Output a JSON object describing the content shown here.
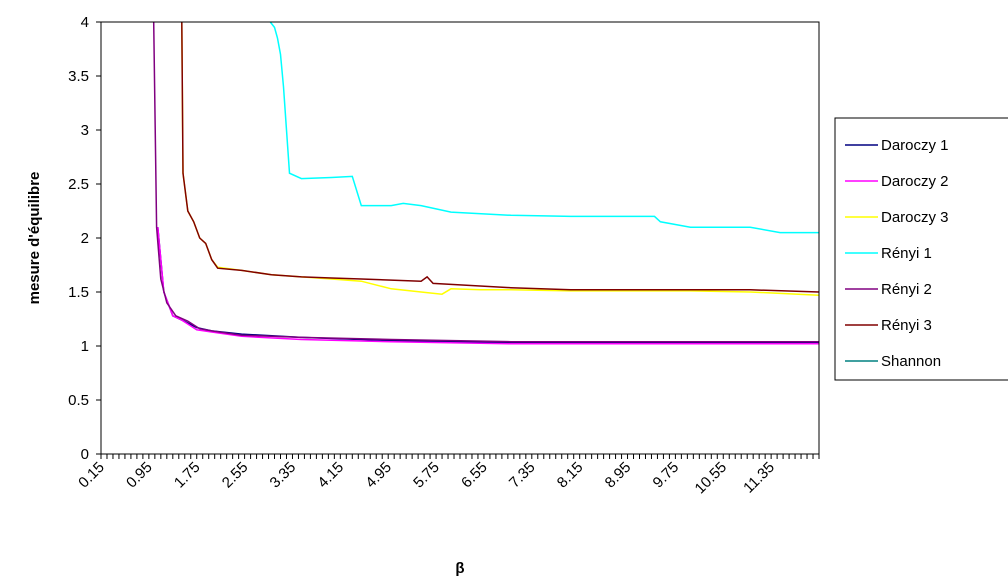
{
  "chart_data": {
    "type": "line",
    "title": "",
    "xlabel": "β",
    "ylabel": "mesure d'équilibre",
    "xlim": [
      0.15,
      12.15
    ],
    "ylim": [
      0,
      4
    ],
    "yticks": [
      "0",
      "0.5",
      "1",
      "1.5",
      "2",
      "2.5",
      "3",
      "3.5",
      "4"
    ],
    "xtick_labels": [
      "0.15",
      "0.95",
      "1.75",
      "2.55",
      "3.35",
      "4.15",
      "4.95",
      "5.75",
      "6.55",
      "7.35",
      "8.15",
      "8.95",
      "9.75",
      "10.55",
      "11.35"
    ],
    "grid": false,
    "legend_position": "right",
    "series": [
      {
        "name": "Daroczy 1",
        "color": "#000080",
        "x": [
          1.1,
          1.2,
          1.35,
          1.5,
          1.75,
          2.0,
          2.5,
          3.5,
          5.0,
          7.0,
          10.0,
          12.15
        ],
        "y": [
          2.1,
          1.5,
          1.28,
          1.24,
          1.17,
          1.14,
          1.11,
          1.08,
          1.05,
          1.03,
          1.03,
          1.03
        ]
      },
      {
        "name": "Daroczy 2",
        "color": "#ff00ff",
        "x": [
          1.1,
          1.2,
          1.35,
          1.5,
          1.75,
          2.0,
          2.5,
          3.5,
          5.0,
          7.0,
          10.0,
          12.15
        ],
        "y": [
          2.1,
          1.5,
          1.28,
          1.24,
          1.15,
          1.13,
          1.09,
          1.06,
          1.04,
          1.02,
          1.02,
          1.02
        ]
      },
      {
        "name": "Daroczy 3",
        "color": "#ffff00",
        "x": [
          1.5,
          1.52,
          1.6,
          1.7,
          1.8,
          1.9,
          2.0,
          2.1,
          2.5,
          3.0,
          3.5,
          4.0,
          4.5,
          5.0,
          5.5,
          5.85,
          6.0,
          6.5,
          7.0,
          8.0,
          9.0,
          10.0,
          11.0,
          12.15
        ],
        "y": [
          4.0,
          2.6,
          2.25,
          2.15,
          2.0,
          1.95,
          1.8,
          1.73,
          1.7,
          1.66,
          1.64,
          1.62,
          1.6,
          1.53,
          1.5,
          1.48,
          1.53,
          1.52,
          1.52,
          1.51,
          1.51,
          1.51,
          1.5,
          1.47
        ]
      },
      {
        "name": "Rényi 1",
        "color": "#00ffff",
        "x": [
          2.98,
          3.05,
          3.1,
          3.15,
          3.2,
          3.25,
          3.3,
          3.5,
          4.0,
          4.35,
          4.5,
          5.0,
          5.2,
          5.5,
          6.0,
          7.0,
          8.0,
          9.4,
          9.5,
          10.0,
          10.5,
          11.0,
          11.5,
          12.15
        ],
        "y": [
          4.0,
          3.95,
          3.85,
          3.7,
          3.4,
          3.0,
          2.6,
          2.55,
          2.56,
          2.57,
          2.3,
          2.3,
          2.32,
          2.3,
          2.24,
          2.21,
          2.2,
          2.2,
          2.15,
          2.1,
          2.1,
          2.1,
          2.05,
          2.05
        ]
      },
      {
        "name": "Rényi 2",
        "color": "#800080",
        "x": [
          1.03,
          1.08,
          1.15,
          1.25,
          1.4,
          1.6,
          1.8,
          2.0,
          2.5,
          3.5,
          5.0,
          7.0,
          10.0,
          12.15
        ],
        "y": [
          4.0,
          2.1,
          1.62,
          1.4,
          1.28,
          1.23,
          1.16,
          1.14,
          1.1,
          1.08,
          1.06,
          1.04,
          1.04,
          1.04
        ]
      },
      {
        "name": "Rényi 3",
        "color": "#800000",
        "x": [
          1.5,
          1.52,
          1.6,
          1.7,
          1.8,
          1.9,
          2.0,
          2.1,
          2.5,
          3.0,
          3.5,
          4.0,
          4.5,
          5.0,
          5.5,
          5.6,
          5.7,
          6.0,
          7.0,
          8.0,
          9.0,
          10.0,
          11.0,
          12.15
        ],
        "y": [
          4.0,
          2.6,
          2.25,
          2.15,
          2.0,
          1.95,
          1.8,
          1.72,
          1.7,
          1.66,
          1.64,
          1.63,
          1.62,
          1.61,
          1.6,
          1.64,
          1.58,
          1.57,
          1.54,
          1.52,
          1.52,
          1.52,
          1.52,
          1.5
        ]
      },
      {
        "name": "Shannon",
        "color": "#008080",
        "x": [],
        "y": []
      }
    ]
  }
}
